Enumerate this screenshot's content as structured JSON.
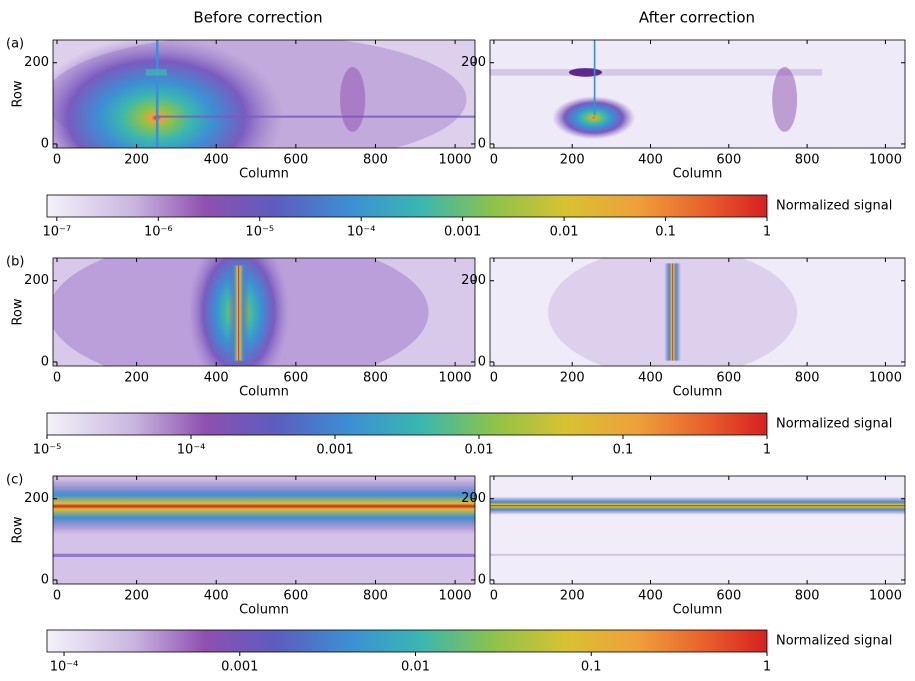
{
  "column_titles": [
    "Before correction",
    "After correction"
  ],
  "chart_data": [
    {
      "type": "heatmap",
      "label": "(a)",
      "xlabel": "Column",
      "ylabel": "Row",
      "xlim": [
        -10,
        1050
      ],
      "xticks": [
        0,
        200,
        400,
        600,
        800,
        1000
      ],
      "ylim": [
        -10,
        256
      ],
      "yticks": [
        0,
        200
      ],
      "colorbar": {
        "label": "Normalized signal",
        "log": true,
        "lim": [
          8e-08,
          1
        ],
        "ticks": [
          {
            "value": 1e-07,
            "label": "10⁻⁷"
          },
          {
            "value": 1e-06,
            "label": "10⁻⁶"
          },
          {
            "value": 1e-05,
            "label": "10⁻⁵"
          },
          {
            "value": 0.0001,
            "label": "10⁻⁴"
          },
          0.001,
          0.01,
          0.1,
          1
        ]
      }
    },
    {
      "type": "heatmap",
      "label": "(b)",
      "xlabel": "Column",
      "ylabel": "Row",
      "xlim": [
        -10,
        1050
      ],
      "xticks": [
        0,
        200,
        400,
        600,
        800,
        1000
      ],
      "ylim": [
        -10,
        256
      ],
      "yticks": [
        0,
        200
      ],
      "colorbar": {
        "label": "Normalized signal",
        "log": true,
        "lim": [
          1e-05,
          1
        ],
        "ticks": [
          {
            "value": 1e-05,
            "label": "10⁻⁵"
          },
          {
            "value": 0.0001,
            "label": "10⁻⁴"
          },
          0.001,
          0.01,
          0.1,
          1
        ]
      }
    },
    {
      "type": "heatmap",
      "label": "(c)",
      "xlabel": "Column",
      "ylabel": "Row",
      "xlim": [
        -10,
        1050
      ],
      "xticks": [
        0,
        200,
        400,
        600,
        800,
        1000
      ],
      "ylim": [
        -10,
        256
      ],
      "yticks": [
        0,
        200
      ],
      "colorbar": {
        "label": "Normalized signal",
        "log": true,
        "lim": [
          8e-05,
          1
        ],
        "ticks": [
          {
            "value": 0.0001,
            "label": "10⁻⁴"
          },
          0.001,
          0.01,
          0.1,
          1
        ]
      }
    }
  ]
}
